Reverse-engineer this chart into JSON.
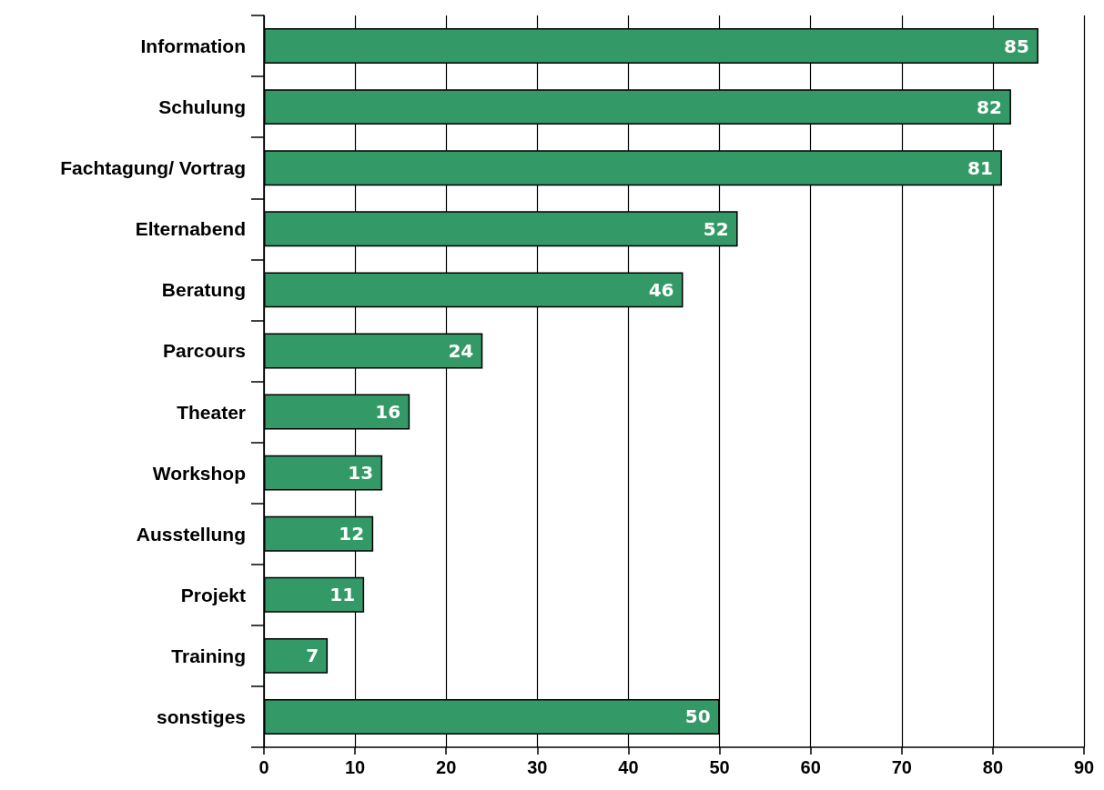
{
  "chart_data": {
    "type": "bar",
    "orientation": "horizontal",
    "categories": [
      "Information",
      "Schulung",
      "Fachtagung/ Vortrag",
      "Elternabend",
      "Beratung",
      "Parcours",
      "Theater",
      "Workshop",
      "Ausstellung",
      "Projekt",
      "Training",
      "sonstiges"
    ],
    "values": [
      85,
      82,
      81,
      52,
      46,
      24,
      16,
      13,
      12,
      11,
      7,
      50
    ],
    "color": "#339966",
    "xlim": [
      0,
      90
    ],
    "xticks": [
      0,
      10,
      20,
      30,
      40,
      50,
      60,
      70,
      80,
      90
    ],
    "grid": "x",
    "data_labels": true
  }
}
